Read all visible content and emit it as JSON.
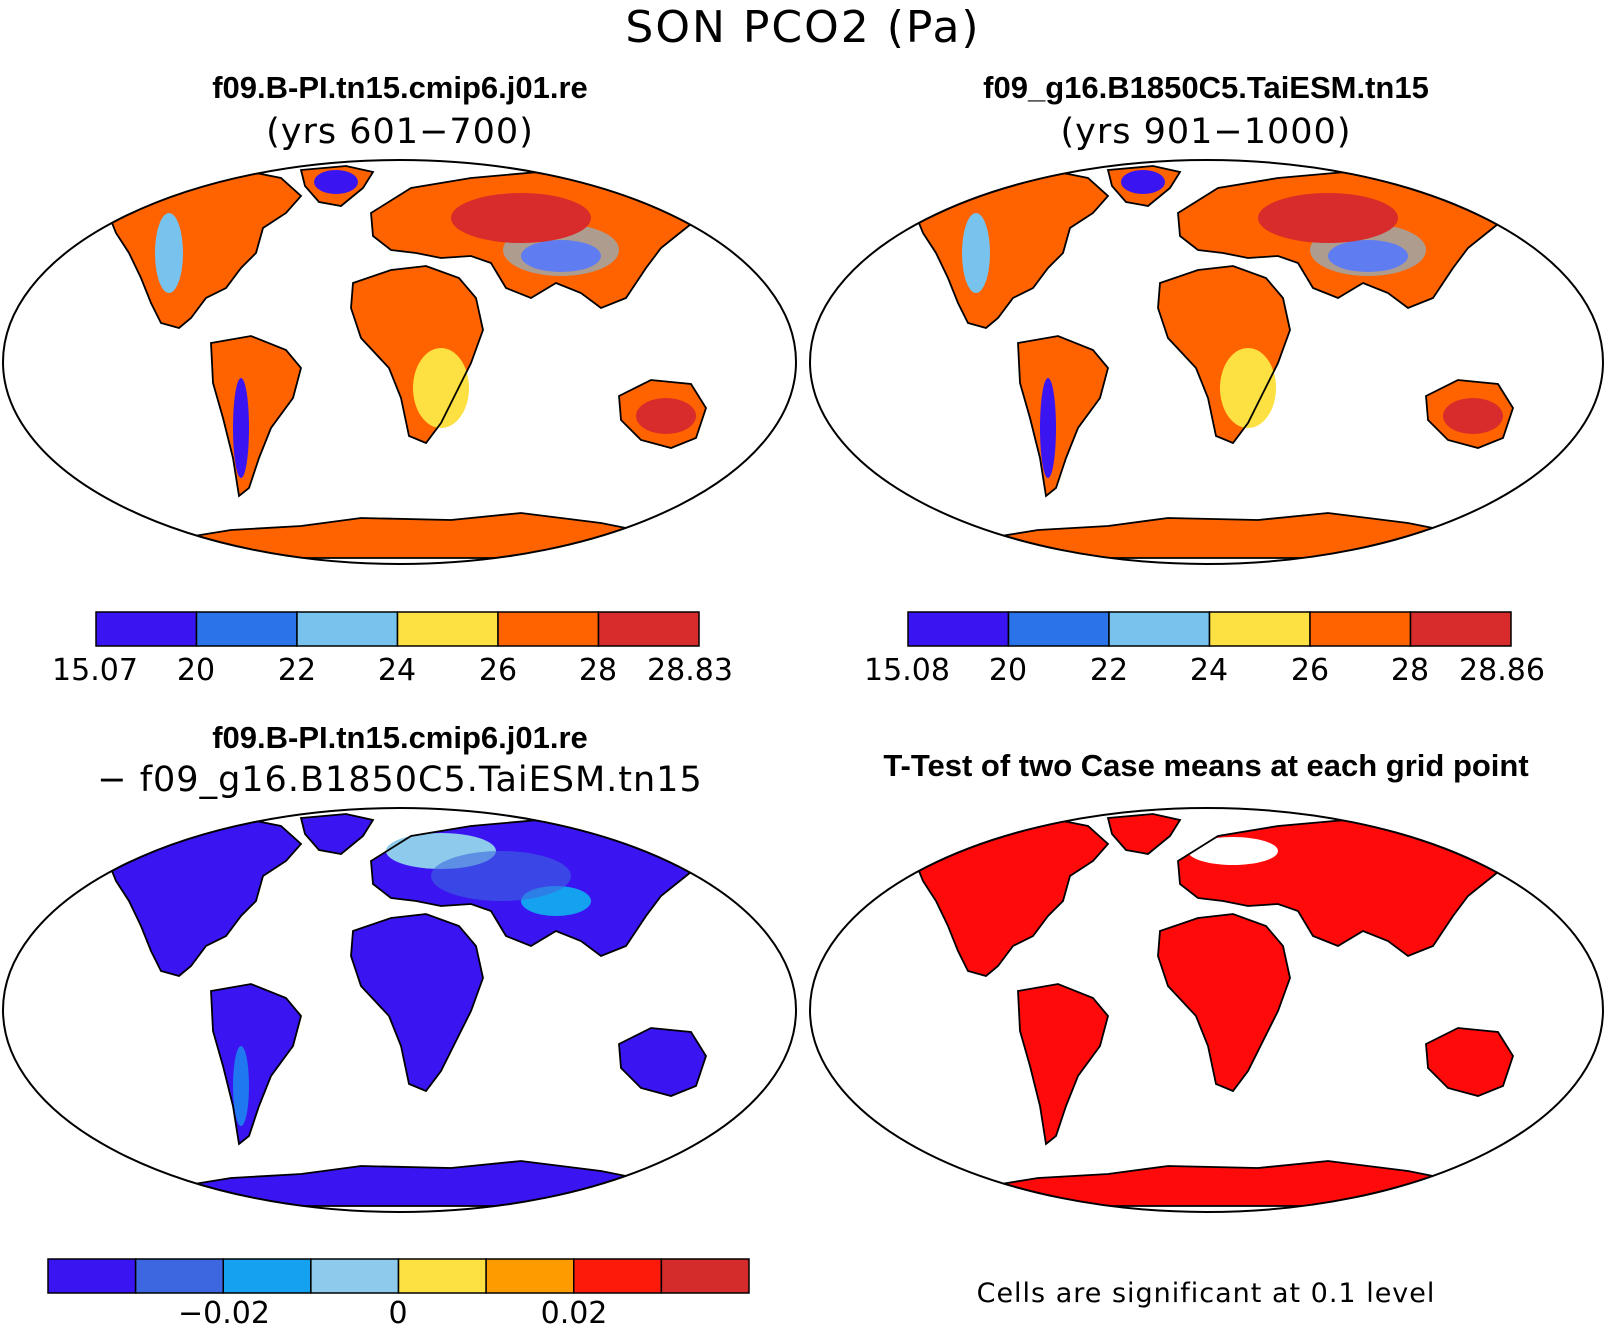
{
  "figure": {
    "title": "SON PCO2 (Pa)"
  },
  "panels": [
    {
      "id": "case1",
      "title": "f09.B-PI.tn15.cmip6.j01.re",
      "subtitle": "(yrs 601−700)",
      "colorbar": {
        "colors": [
          "#3b14f2",
          "#2b73e8",
          "#78c3ee",
          "#fde142",
          "#fe6300",
          "#d82b2b"
        ],
        "tick_labels": [
          "15.07",
          "20",
          "22",
          "24",
          "26",
          "28",
          "28.83"
        ]
      }
    },
    {
      "id": "case2",
      "title": "f09_g16.B1850C5.TaiESM.tn15",
      "subtitle": "(yrs 901−1000)",
      "colorbar": {
        "colors": [
          "#3b14f2",
          "#2b73e8",
          "#78c3ee",
          "#fde142",
          "#fe6300",
          "#d82b2b"
        ],
        "tick_labels": [
          "15.08",
          "20",
          "22",
          "24",
          "26",
          "28",
          "28.86"
        ]
      }
    },
    {
      "id": "diff",
      "title": "f09.B-PI.tn15.cmip6.j01.re",
      "subtitle": "− f09_g16.B1850C5.TaiESM.tn15",
      "colorbar": {
        "colors": [
          "#3b14f2",
          "#3c67e0",
          "#14a2f0",
          "#8ecaec",
          "#fde142",
          "#fd9b00",
          "#fe1a0a",
          "#d42b2b"
        ],
        "tick_labels": [
          "−0.02",
          "0",
          "0.02"
        ]
      }
    },
    {
      "id": "ttest",
      "title": "T-Test of two Case means at each grid point",
      "note": "Cells are significant at 0.1 level",
      "fill_color": "#ff0a0a"
    }
  ]
}
